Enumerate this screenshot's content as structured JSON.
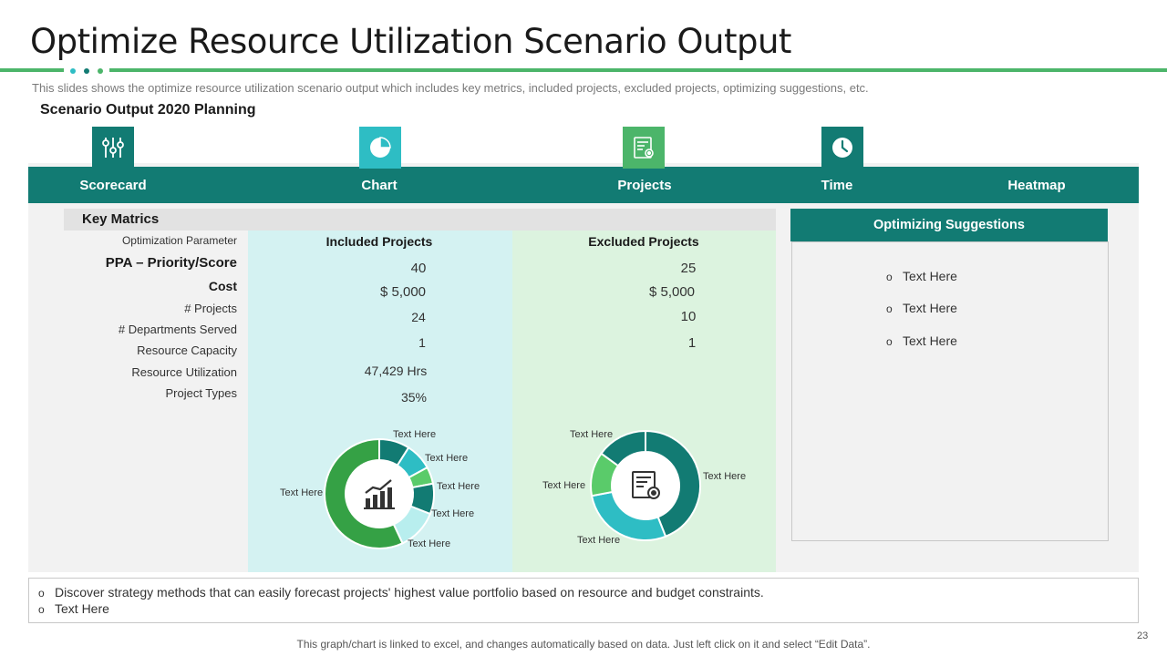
{
  "header": {
    "title": "Optimize Resource Utilization Scenario Output",
    "subtitle": "This slides shows the optimize resource utilization scenario output which includes key metrics, included projects, excluded projects, optimizing suggestions, etc.",
    "scenario_title": "Scenario Output  2020 Planning"
  },
  "colors": {
    "teal": "#127b73",
    "green": "#4cb56a",
    "cyan": "#2ebdc4",
    "light_green": "#5acb6a"
  },
  "tabs": [
    {
      "label": "Scorecard",
      "icon": "sliders-icon"
    },
    {
      "label": "Chart",
      "icon": "pie-chart-icon"
    },
    {
      "label": "Projects",
      "icon": "document-gear-icon"
    },
    {
      "label": "Time",
      "icon": "clock-icon"
    },
    {
      "label": "Heatmap"
    }
  ],
  "key_metrics": {
    "title": "Key Matrics",
    "params": [
      "Optimization Parameter",
      "PPA – Priority/Score",
      "Cost",
      "# Projects",
      "# Departments Served",
      "Resource Capacity",
      "Resource Utilization",
      "Project Types"
    ],
    "included": {
      "header": "Included Projects",
      "values": [
        "40",
        "$ 5,000",
        "24",
        "1",
        "47,429 Hrs",
        "35%"
      ]
    },
    "excluded": {
      "header": "Excluded Projects",
      "values": [
        "25",
        "$ 5,000",
        "10",
        "1"
      ]
    }
  },
  "chart_data": [
    {
      "type": "pie",
      "labels": [
        "Text Here",
        "Text Here",
        "Text Here",
        "Text Here",
        "Text Here",
        "Text Here"
      ],
      "values": [
        9,
        8,
        5,
        9,
        12,
        57
      ],
      "colors": [
        "#127b73",
        "#2ebdc4",
        "#5acb6a",
        "#127b73",
        "#b8eeee",
        "#35a145"
      ],
      "center_icon": "bar-chart-trend-icon"
    },
    {
      "type": "pie",
      "labels": [
        "Text Here",
        "Text Here",
        "Text Here",
        "Text Here"
      ],
      "values": [
        44,
        28,
        13,
        15
      ],
      "colors": [
        "#127b73",
        "#2ebdc4",
        "#5acb6a",
        "#127b73"
      ],
      "center_icon": "document-gear-icon"
    }
  ],
  "optimizing": {
    "title": "Optimizing Suggestions",
    "items": [
      "Text Here",
      "Text Here",
      "Text Here"
    ]
  },
  "bottom": {
    "items": [
      "Discover strategy methods that can easily forecast projects' highest value portfolio based on resource and budget constraints.",
      "Text Here"
    ]
  },
  "footer": {
    "note": "This graph/chart is linked to excel, and changes automatically based on data. Just left click on it and select “Edit Data”.",
    "page": "23"
  },
  "bullet": "o"
}
